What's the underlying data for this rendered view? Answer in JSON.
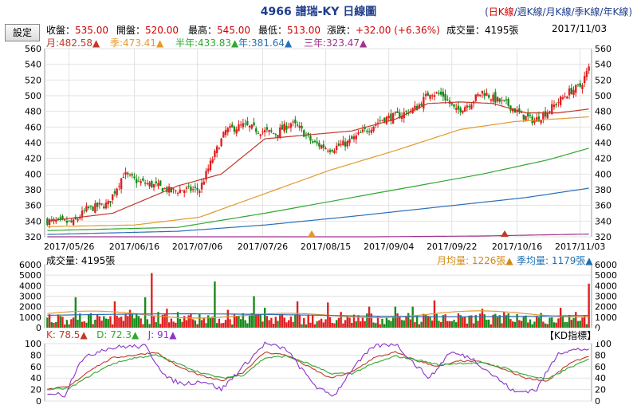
{
  "header": {
    "title": "4966 譜瑞-KY  日線圖"
  },
  "periods": [
    {
      "label": "日K線",
      "selected": true
    },
    {
      "label": "週K線",
      "selected": false
    },
    {
      "label": "月K線",
      "selected": false
    },
    {
      "label": "季K線",
      "selected": false
    },
    {
      "label": "年K線",
      "selected": false
    }
  ],
  "settings_label": "設定",
  "quote": {
    "close_label": "收盤：",
    "close": "535.00",
    "open_label": "開盤：",
    "open": "520.00",
    "high_label": "最高：",
    "high": "545.00",
    "low_label": "最低：",
    "low": "513.00",
    "change_label": "漲跌：",
    "change": "+32.00 (+6.36%)",
    "volume_label": "成交量：",
    "volume": "4195張",
    "date": "2017/11/03"
  },
  "ma_legend": [
    {
      "label": "月:482.58▲",
      "color": "#c0392b"
    },
    {
      "label": "季:473.41▲",
      "color": "#e39a2d"
    },
    {
      "label": "半年:433.83▲",
      "color": "#2fa82f"
    },
    {
      "label": "年:381.64▲",
      "color": "#2a6fb7"
    },
    {
      "label": "三年:323.47▲",
      "color": "#a0318f"
    }
  ],
  "volume_legend": {
    "label": "成交量: 4195張",
    "month_avg": "月均量: 1226張▲",
    "quarter_avg": "季均量: 1179張▲"
  },
  "kd_legend": {
    "k": "K: 78.5▲",
    "d": "D: 72.3▲",
    "j": "J: 91▲",
    "title": "【KD指標】"
  },
  "colors": {
    "up": "#e02020",
    "down": "#1a8a1a",
    "ma_month": "#c0392b",
    "ma_quarter": "#e39a2d",
    "ma_half": "#2fa82f",
    "ma_year": "#2a6fb7",
    "ma_3year": "#a0318f",
    "k": "#c0392b",
    "d": "#2fa82f",
    "j": "#8a35c9"
  },
  "chart_data": [
    {
      "type": "line",
      "title": "4966 譜瑞-KY 日線圖",
      "xlabel": "",
      "ylabel": "",
      "ylim": [
        320,
        560
      ],
      "yticks": [
        320,
        340,
        360,
        380,
        400,
        420,
        440,
        460,
        480,
        500,
        520,
        540,
        560
      ],
      "xtick_labels": [
        {
          "label": "2017/05/26",
          "i": 10
        },
        {
          "label": "2017/06/16",
          "i": 40
        },
        {
          "label": "2017/07/06",
          "i": 69
        },
        {
          "label": "2017/07/26",
          "i": 99
        },
        {
          "label": "2017/08/15",
          "i": 128
        },
        {
          "label": "2017/09/04",
          "i": 157
        },
        {
          "label": "2017/09/22",
          "i": 186
        },
        {
          "label": "2017/10/16",
          "i": 216
        },
        {
          "label": "2017/11/03",
          "i": 245
        }
      ],
      "grid": true,
      "candlestick_count": 250,
      "candles_close_anchors": [
        [
          0,
          340
        ],
        [
          12,
          338
        ],
        [
          18,
          355
        ],
        [
          28,
          362
        ],
        [
          35,
          400
        ],
        [
          42,
          390
        ],
        [
          50,
          385
        ],
        [
          57,
          378
        ],
        [
          62,
          380
        ],
        [
          70,
          380
        ],
        [
          76,
          420
        ],
        [
          82,
          455
        ],
        [
          90,
          462
        ],
        [
          98,
          455
        ],
        [
          105,
          452
        ],
        [
          112,
          465
        ],
        [
          116,
          458
        ],
        [
          122,
          440
        ],
        [
          130,
          432
        ],
        [
          138,
          440
        ],
        [
          146,
          455
        ],
        [
          154,
          470
        ],
        [
          162,
          475
        ],
        [
          170,
          485
        ],
        [
          176,
          505
        ],
        [
          182,
          500
        ],
        [
          188,
          480
        ],
        [
          194,
          490
        ],
        [
          200,
          505
        ],
        [
          206,
          495
        ],
        [
          212,
          488
        ],
        [
          218,
          475
        ],
        [
          224,
          468
        ],
        [
          230,
          480
        ],
        [
          236,
          495
        ],
        [
          240,
          505
        ],
        [
          245,
          512
        ],
        [
          249,
          535
        ]
      ],
      "ma_series": [
        {
          "name": "月",
          "anchors": [
            [
              0,
              340
            ],
            [
              30,
              350
            ],
            [
              60,
              385
            ],
            [
              80,
              400
            ],
            [
              100,
              445
            ],
            [
              120,
              450
            ],
            [
              140,
              455
            ],
            [
              160,
              470
            ],
            [
              175,
              490
            ],
            [
              190,
              492
            ],
            [
              205,
              490
            ],
            [
              220,
              478
            ],
            [
              235,
              478
            ],
            [
              249,
              483
            ]
          ]
        },
        {
          "name": "季",
          "anchors": [
            [
              0,
              333
            ],
            [
              40,
              335
            ],
            [
              70,
              345
            ],
            [
              100,
              375
            ],
            [
              130,
              405
            ],
            [
              160,
              430
            ],
            [
              190,
              457
            ],
            [
              215,
              467
            ],
            [
              249,
              473
            ]
          ]
        },
        {
          "name": "半年",
          "anchors": [
            [
              0,
              328
            ],
            [
              60,
              332
            ],
            [
              100,
              350
            ],
            [
              140,
              370
            ],
            [
              170,
              385
            ],
            [
              200,
              400
            ],
            [
              230,
              418
            ],
            [
              249,
              433
            ]
          ]
        },
        {
          "name": "年",
          "anchors": [
            [
              0,
              323
            ],
            [
              60,
              327
            ],
            [
              100,
              335
            ],
            [
              140,
              346
            ],
            [
              180,
              358
            ],
            [
              220,
              370
            ],
            [
              249,
              382
            ]
          ]
        },
        {
          "name": "三年",
          "anchors": [
            [
              0,
              318
            ],
            [
              100,
              319
            ],
            [
              200,
              321
            ],
            [
              249,
              323.5
            ]
          ]
        }
      ]
    },
    {
      "type": "bar",
      "title": "成交量",
      "ylim": [
        0,
        6000
      ],
      "yticks": [
        0,
        1000,
        2000,
        3000,
        4000,
        5000,
        6000
      ],
      "unit": "張",
      "last_value": 4195,
      "peaks": [
        [
          13,
          2900
        ],
        [
          31,
          2500
        ],
        [
          38,
          1700
        ],
        [
          45,
          2900
        ],
        [
          48,
          5200
        ],
        [
          51,
          1500
        ],
        [
          55,
          1800
        ],
        [
          60,
          1500
        ],
        [
          70,
          1300
        ],
        [
          77,
          4400
        ],
        [
          83,
          1700
        ],
        [
          88,
          1100
        ],
        [
          95,
          3000
        ],
        [
          100,
          1900
        ],
        [
          108,
          1300
        ],
        [
          115,
          2500
        ],
        [
          122,
          1200
        ],
        [
          129,
          2400
        ],
        [
          135,
          1500
        ],
        [
          148,
          2000
        ],
        [
          160,
          2000
        ],
        [
          168,
          2000
        ],
        [
          178,
          2600
        ],
        [
          190,
          1200
        ],
        [
          200,
          1800
        ],
        [
          210,
          1500
        ],
        [
          216,
          1300
        ],
        [
          227,
          1400
        ],
        [
          236,
          1900
        ],
        [
          243,
          1500
        ],
        [
          249,
          4195
        ]
      ],
      "avg_month_level": 1226,
      "avg_quarter_level": 1179
    },
    {
      "type": "line",
      "title": "KD指標",
      "ylim": [
        0,
        100
      ],
      "yticks": [
        0,
        20,
        40,
        60,
        80,
        100
      ],
      "series": [
        {
          "name": "K",
          "anchors": [
            [
              0,
              20
            ],
            [
              10,
              25
            ],
            [
              20,
              55
            ],
            [
              30,
              75
            ],
            [
              40,
              80
            ],
            [
              50,
              85
            ],
            [
              60,
              60
            ],
            [
              70,
              45
            ],
            [
              80,
              35
            ],
            [
              90,
              50
            ],
            [
              100,
              85
            ],
            [
              110,
              80
            ],
            [
              120,
              60
            ],
            [
              130,
              40
            ],
            [
              140,
              50
            ],
            [
              150,
              75
            ],
            [
              160,
              85
            ],
            [
              170,
              70
            ],
            [
              180,
              60
            ],
            [
              190,
              70
            ],
            [
              200,
              68
            ],
            [
              210,
              55
            ],
            [
              220,
              40
            ],
            [
              230,
              35
            ],
            [
              240,
              65
            ],
            [
              249,
              78.5
            ]
          ]
        },
        {
          "name": "D",
          "anchors": [
            [
              0,
              20
            ],
            [
              10,
              22
            ],
            [
              20,
              45
            ],
            [
              30,
              65
            ],
            [
              40,
              75
            ],
            [
              50,
              80
            ],
            [
              60,
              65
            ],
            [
              70,
              50
            ],
            [
              80,
              40
            ],
            [
              90,
              45
            ],
            [
              100,
              75
            ],
            [
              110,
              78
            ],
            [
              120,
              65
            ],
            [
              130,
              48
            ],
            [
              140,
              48
            ],
            [
              150,
              65
            ],
            [
              160,
              78
            ],
            [
              170,
              72
            ],
            [
              180,
              63
            ],
            [
              190,
              66
            ],
            [
              200,
              66
            ],
            [
              210,
              58
            ],
            [
              220,
              45
            ],
            [
              230,
              38
            ],
            [
              240,
              58
            ],
            [
              249,
              72.3
            ]
          ]
        },
        {
          "name": "J",
          "anchors": [
            [
              0,
              15
            ],
            [
              8,
              10
            ],
            [
              15,
              70
            ],
            [
              25,
              90
            ],
            [
              35,
              95
            ],
            [
              45,
              95
            ],
            [
              55,
              40
            ],
            [
              62,
              30
            ],
            [
              72,
              35
            ],
            [
              80,
              20
            ],
            [
              90,
              60
            ],
            [
              100,
              100
            ],
            [
              110,
              90
            ],
            [
              118,
              50
            ],
            [
              125,
              20
            ],
            [
              132,
              10
            ],
            [
              140,
              55
            ],
            [
              150,
              95
            ],
            [
              160,
              100
            ],
            [
              170,
              60
            ],
            [
              176,
              40
            ],
            [
              185,
              85
            ],
            [
              195,
              75
            ],
            [
              205,
              45
            ],
            [
              215,
              15
            ],
            [
              225,
              20
            ],
            [
              235,
              85
            ],
            [
              245,
              90
            ],
            [
              249,
              91
            ]
          ]
        }
      ]
    }
  ]
}
